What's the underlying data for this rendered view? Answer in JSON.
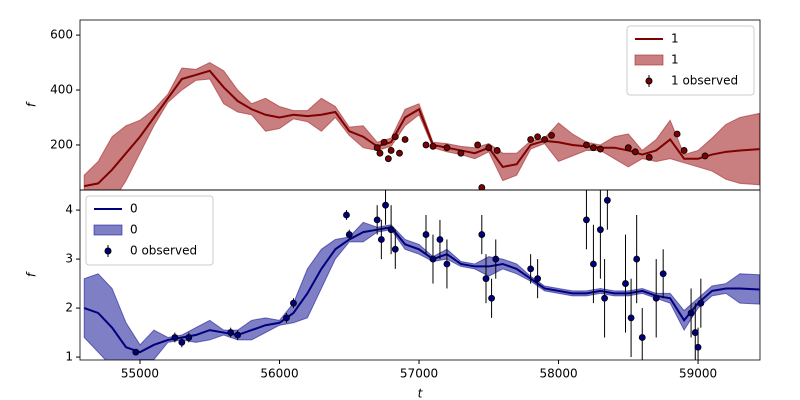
{
  "chart_data": [
    {
      "type": "gp",
      "ylabel": "f",
      "xlim": [
        54570,
        59444
      ],
      "ylim": [
        36,
        655
      ],
      "yticks": [
        200,
        400,
        600
      ],
      "legend": "upper right",
      "series": [
        {
          "name": "1",
          "type": "line",
          "color": "#7f0000",
          "x": [
            54600,
            54700,
            54800,
            54900,
            55000,
            55100,
            55200,
            55300,
            55400,
            55500,
            55600,
            55700,
            55800,
            55900,
            56000,
            56100,
            56200,
            56300,
            56400,
            56500,
            56600,
            56700,
            56800,
            56900,
            57000,
            57100,
            57200,
            57300,
            57400,
            57500,
            57600,
            57700,
            57800,
            57900,
            58000,
            58100,
            58200,
            58300,
            58400,
            58500,
            58600,
            58700,
            58800,
            58900,
            59000,
            59100,
            59200,
            59300,
            59440
          ],
          "values": [
            50,
            60,
            110,
            170,
            230,
            300,
            370,
            440,
            455,
            470,
            410,
            360,
            330,
            310,
            300,
            310,
            305,
            310,
            320,
            250,
            230,
            195,
            210,
            300,
            330,
            200,
            190,
            180,
            170,
            190,
            120,
            130,
            200,
            215,
            210,
            200,
            195,
            190,
            190,
            180,
            165,
            180,
            220,
            150,
            150,
            165,
            175,
            180,
            185
          ]
        },
        {
          "name": "1",
          "type": "band",
          "color": "#a52a2a",
          "alpha": 0.6,
          "x": [
            54600,
            54700,
            54800,
            54900,
            55000,
            55100,
            55200,
            55300,
            55400,
            55500,
            55600,
            55700,
            55800,
            55900,
            56000,
            56100,
            56200,
            56300,
            56400,
            56500,
            56600,
            56700,
            56800,
            56900,
            57000,
            57100,
            57200,
            57300,
            57400,
            57500,
            57600,
            57700,
            57800,
            57900,
            58000,
            58100,
            58200,
            58300,
            58400,
            58500,
            58600,
            58700,
            58800,
            58900,
            59000,
            59100,
            59200,
            59300,
            59440
          ],
          "lower": [
            10,
            -20,
            -10,
            70,
            170,
            270,
            355,
            400,
            435,
            440,
            350,
            320,
            310,
            250,
            260,
            295,
            285,
            250,
            300,
            235,
            190,
            180,
            195,
            270,
            310,
            190,
            175,
            165,
            150,
            175,
            70,
            90,
            185,
            205,
            140,
            160,
            180,
            180,
            150,
            120,
            150,
            140,
            150,
            135,
            120,
            105,
            75,
            60,
            55
          ],
          "upper": [
            90,
            140,
            230,
            270,
            290,
            330,
            385,
            480,
            475,
            500,
            470,
            400,
            350,
            370,
            340,
            325,
            325,
            370,
            340,
            265,
            270,
            210,
            225,
            330,
            350,
            210,
            205,
            195,
            190,
            205,
            170,
            170,
            215,
            225,
            280,
            240,
            210,
            200,
            230,
            240,
            180,
            220,
            290,
            165,
            180,
            225,
            275,
            300,
            315
          ]
        },
        {
          "name": "1 observed",
          "type": "errorbar",
          "color": "#7f0000",
          "x": [
            56700,
            56720,
            56750,
            56780,
            56800,
            56830,
            56860,
            56900,
            57050,
            57100,
            57200,
            57300,
            57420,
            57450,
            57500,
            57560,
            57800,
            57850,
            57900,
            57950,
            58200,
            58250,
            58300,
            58500,
            58550,
            58650,
            58850,
            58900,
            59050
          ],
          "values": [
            190,
            170,
            210,
            150,
            180,
            230,
            170,
            220,
            200,
            195,
            190,
            170,
            200,
            45,
            190,
            180,
            220,
            230,
            220,
            235,
            200,
            190,
            185,
            190,
            175,
            155,
            240,
            180,
            160
          ],
          "errors": [
            10,
            10,
            10,
            10,
            10,
            10,
            10,
            10,
            10,
            10,
            10,
            10,
            10,
            10,
            10,
            10,
            10,
            10,
            10,
            10,
            10,
            10,
            10,
            10,
            10,
            10,
            10,
            10,
            10
          ]
        }
      ]
    },
    {
      "type": "gp",
      "ylabel": "f",
      "xlabel": "t",
      "xlim": [
        54570,
        59444
      ],
      "ylim": [
        0.94,
        4.41
      ],
      "xticks": [
        55000,
        56000,
        57000,
        58000,
        59000
      ],
      "yticks": [
        1,
        2,
        3,
        4
      ],
      "legend": "upper left",
      "series": [
        {
          "name": "0",
          "type": "line",
          "color": "#00007f",
          "x": [
            54600,
            54700,
            54800,
            54900,
            55000,
            55100,
            55200,
            55300,
            55400,
            55500,
            55600,
            55700,
            55800,
            55900,
            56000,
            56100,
            56200,
            56300,
            56400,
            56500,
            56600,
            56700,
            56800,
            56900,
            57000,
            57100,
            57200,
            57300,
            57400,
            57500,
            57600,
            57700,
            57800,
            57900,
            58000,
            58100,
            58200,
            58300,
            58400,
            58500,
            58600,
            58700,
            58800,
            58900,
            59000,
            59100,
            59200,
            59300,
            59440
          ],
          "values": [
            2.0,
            1.9,
            1.6,
            1.2,
            1.1,
            1.25,
            1.35,
            1.4,
            1.45,
            1.55,
            1.5,
            1.45,
            1.55,
            1.65,
            1.7,
            1.9,
            2.3,
            2.8,
            3.2,
            3.4,
            3.55,
            3.6,
            3.65,
            3.3,
            3.2,
            3.0,
            3.1,
            2.9,
            2.85,
            2.85,
            2.9,
            2.8,
            2.6,
            2.4,
            2.35,
            2.3,
            2.3,
            2.35,
            2.3,
            2.3,
            2.35,
            2.25,
            2.2,
            1.75,
            2.1,
            2.35,
            2.4,
            2.4,
            2.38
          ]
        },
        {
          "name": "0",
          "type": "band",
          "color": "#00008b",
          "alpha": 0.5,
          "x": [
            54600,
            54700,
            54800,
            54900,
            55000,
            55100,
            55200,
            55300,
            55400,
            55500,
            55600,
            55700,
            55800,
            55900,
            56000,
            56100,
            56200,
            56300,
            56400,
            56500,
            56600,
            56700,
            56800,
            56900,
            57000,
            57100,
            57200,
            57300,
            57400,
            57500,
            57600,
            57700,
            57800,
            57900,
            58000,
            58100,
            58200,
            58300,
            58400,
            58500,
            58600,
            58700,
            58800,
            58900,
            59000,
            59100,
            59200,
            59300,
            59440
          ],
          "lower": [
            1.4,
            1.1,
            0.8,
            0.7,
            0.95,
            0.95,
            1.3,
            1.35,
            1.3,
            1.35,
            1.45,
            1.35,
            1.35,
            1.5,
            1.65,
            1.7,
            1.8,
            2.4,
            3.0,
            3.35,
            3.35,
            3.55,
            3.6,
            3.2,
            3.1,
            2.95,
            3.0,
            2.85,
            2.8,
            2.65,
            2.8,
            2.7,
            2.55,
            2.35,
            2.3,
            2.25,
            2.25,
            2.3,
            2.25,
            2.25,
            2.3,
            2.2,
            2.1,
            1.55,
            2.0,
            2.25,
            2.3,
            2.1,
            2.08
          ],
          "upper": [
            2.6,
            2.7,
            2.4,
            1.7,
            1.25,
            1.55,
            1.4,
            1.45,
            1.6,
            1.75,
            1.55,
            1.55,
            1.75,
            1.8,
            1.75,
            2.1,
            2.8,
            3.2,
            3.4,
            3.45,
            3.75,
            3.65,
            3.7,
            3.4,
            3.3,
            3.05,
            3.2,
            2.95,
            2.9,
            3.05,
            3.0,
            2.9,
            2.65,
            2.45,
            2.4,
            2.35,
            2.35,
            2.4,
            2.35,
            2.35,
            2.4,
            2.3,
            2.3,
            1.95,
            2.2,
            2.45,
            2.5,
            2.7,
            2.68
          ]
        },
        {
          "name": "0 observed",
          "type": "errorbar",
          "color": "#00007f",
          "x": [
            54970,
            55250,
            55300,
            55350,
            55650,
            55700,
            56050,
            56100,
            56480,
            56500,
            56700,
            56730,
            56760,
            56800,
            56830,
            57050,
            57100,
            57150,
            57200,
            57450,
            57480,
            57520,
            57550,
            57800,
            57850,
            58200,
            58250,
            58300,
            58330,
            58350,
            58480,
            58520,
            58560,
            58600,
            58700,
            58750,
            58950,
            58980,
            59000,
            59020
          ],
          "values": [
            1.1,
            1.4,
            1.3,
            1.4,
            1.5,
            1.45,
            1.8,
            2.1,
            3.9,
            3.5,
            3.8,
            3.4,
            4.1,
            3.6,
            3.2,
            3.5,
            3.0,
            3.4,
            2.9,
            3.5,
            2.6,
            2.2,
            3.0,
            2.8,
            2.6,
            3.8,
            2.9,
            3.6,
            2.2,
            4.2,
            2.5,
            1.8,
            3.0,
            1.4,
            2.2,
            2.7,
            1.9,
            1.5,
            1.2,
            2.1
          ],
          "errors": [
            0.05,
            0.1,
            0.1,
            0.1,
            0.1,
            0.1,
            0.1,
            0.1,
            0.1,
            0.1,
            0.3,
            0.4,
            0.4,
            0.5,
            0.4,
            0.4,
            0.5,
            0.4,
            0.5,
            0.4,
            0.5,
            0.4,
            0.4,
            0.3,
            0.4,
            0.6,
            0.8,
            1.0,
            0.8,
            0.6,
            1.0,
            0.8,
            0.9,
            0.6,
            0.8,
            0.5,
            0.5,
            0.6,
            0.4,
            0.5
          ]
        }
      ]
    }
  ]
}
